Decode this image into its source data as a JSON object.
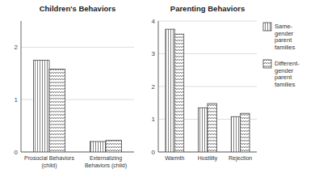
{
  "chart_data": [
    {
      "type": "bar",
      "title": "Children's Behaviors",
      "categories": [
        "Prosocial Behaviors\n(child)",
        "Externalizing\nBehaviors (child)"
      ],
      "series": [
        {
          "values": [
            1.75,
            0.2
          ]
        },
        {
          "values": [
            1.58,
            0.22
          ]
        }
      ],
      "ylim": [
        0,
        2.5
      ],
      "yticks": [
        0,
        1,
        2
      ],
      "grid": true
    },
    {
      "type": "bar",
      "title": "Parenting Behaviors",
      "categories": [
        "Warmth",
        "Hostility",
        "Rejection"
      ],
      "series": [
        {
          "name": "Same-\ngender\nparent\nfamilies",
          "values": [
            3.75,
            1.35,
            1.08
          ]
        },
        {
          "name": "Different-\ngender\nparent\nfamilies",
          "values": [
            3.6,
            1.48,
            1.18
          ]
        }
      ],
      "ylim": [
        0,
        4.0
      ],
      "yticks": [
        0,
        1,
        2,
        3,
        4
      ],
      "grid": true,
      "legend": "right"
    }
  ]
}
